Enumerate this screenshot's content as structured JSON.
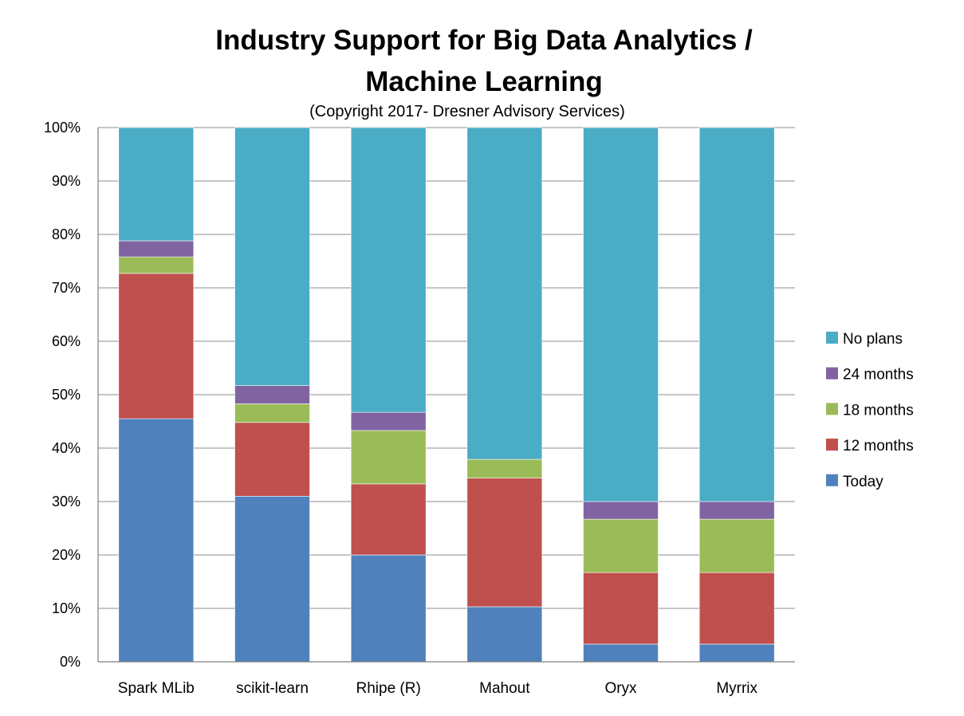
{
  "chart_data": {
    "type": "bar",
    "stacked": true,
    "title_lines": [
      "Industry Support for Big Data Analytics /",
      "Machine Learning"
    ],
    "subtitle": "(Copyright 2017- Dresner Advisory Services)",
    "xlabel": "",
    "ylabel": "",
    "ylim": [
      0,
      100
    ],
    "ytick_labels": [
      "0%",
      "10%",
      "20%",
      "30%",
      "40%",
      "50%",
      "60%",
      "70%",
      "80%",
      "90%",
      "100%"
    ],
    "grid": true,
    "legend_position": "right",
    "categories": [
      "Spark MLib",
      "scikit-learn",
      "Rhipe (R)",
      "Mahout",
      "Oryx",
      "Myrrix"
    ],
    "series": [
      {
        "name": "Today",
        "color": "#4f81bd",
        "values": [
          45.5,
          31,
          20,
          10.3,
          3.3,
          3.3
        ]
      },
      {
        "name": "12 months",
        "color": "#c0504d",
        "values": [
          27.2,
          13.8,
          13.3,
          24.1,
          13.4,
          13.4
        ]
      },
      {
        "name": "18 months",
        "color": "#9bbb59",
        "values": [
          3.1,
          3.5,
          10,
          3.5,
          10,
          10
        ]
      },
      {
        "name": "24 months",
        "color": "#8064a2",
        "values": [
          3.0,
          3.4,
          3.4,
          0,
          3.3,
          3.3
        ]
      },
      {
        "name": "No plans",
        "color": "#4bacc6",
        "values": [
          21.2,
          48.3,
          53.3,
          62.1,
          70,
          70
        ]
      }
    ],
    "legend_order": [
      "No plans",
      "24 months",
      "18 months",
      "12 months",
      "Today"
    ]
  }
}
